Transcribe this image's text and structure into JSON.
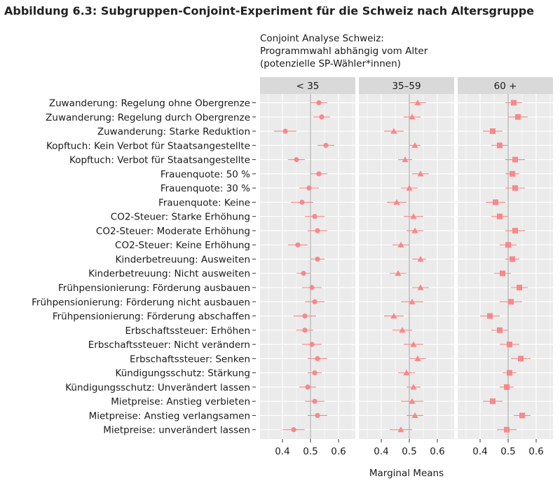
{
  "figure_title": "Abbildung 6.3: Subgruppen-Conjoint-Experiment für die Schweiz nach Altersgruppe",
  "colors": {
    "marker": "#f8888a",
    "panel_bg": "#ebebeb",
    "strip_bg": "#d9d9d9",
    "grid": "#ffffff",
    "refline": "#a6a6a6"
  },
  "chart_data": {
    "type": "scatter",
    "title_lines": [
      "Conjoint Analyse Schweiz:",
      "Programmwahl abhängig vom Alter",
      "(potenzielle SP-Wähler*innen)"
    ],
    "xlabel": "Marginal Means",
    "xlim": [
      0.32,
      0.66
    ],
    "xticks": [
      0.4,
      0.5,
      0.6
    ],
    "xtick_labels": [
      "0.4",
      "0.5",
      "0.6"
    ],
    "reference_line": 0.5,
    "categories": [
      "Zuwanderung: Regelung ohne Obergrenze",
      "Zuwanderung: Regelung durch Obergrenze",
      "Zuwanderung: Starke Reduktion",
      "Kopftuch: Kein Verbot für Staatsangestellte",
      "Kopftuch: Verbot für Staatsangestellte",
      "Frauenquote: 50 %",
      "Frauenquote: 30 %",
      "Frauenquote: Keine",
      "CO2-Steuer: Starke Erhöhung",
      "CO2-Steuer: Moderate Erhöhung",
      "CO2-Steuer: Keine Erhöhung",
      "Kinderbetreuung: Ausweiten",
      "Kinderbetreuung: Nicht ausweiten",
      "Frühpensionierung: Förderung ausbauen",
      "Frühpensionierung: Förderung nicht ausbauen",
      "Frühpensionierung: Förderung abschaffen",
      "Erbschaftssteuer: Erhöhen",
      "Erbschaftssteuer: Nicht verändern",
      "Erbschaftssteuer: Senken",
      "Kündigungsschutz: Stärkung",
      "Kündigungsschutz: Unverändert lassen",
      "Mietpreise: Anstieg verbieten",
      "Mietpreise: Anstieg verlangsamen",
      "Mietpreise: unverändert lassen"
    ],
    "series": [
      {
        "name": "< 35",
        "marker": "circle",
        "values": [
          0.53,
          0.54,
          0.41,
          0.555,
          0.45,
          0.53,
          0.495,
          0.47,
          0.515,
          0.525,
          0.455,
          0.525,
          0.475,
          0.505,
          0.515,
          0.48,
          0.48,
          0.505,
          0.525,
          0.515,
          0.49,
          0.515,
          0.525,
          0.44
        ],
        "lower": [
          0.5,
          0.51,
          0.37,
          0.525,
          0.42,
          0.5,
          0.46,
          0.43,
          0.48,
          0.49,
          0.42,
          0.5,
          0.45,
          0.47,
          0.48,
          0.44,
          0.45,
          0.47,
          0.49,
          0.49,
          0.46,
          0.48,
          0.49,
          0.4
        ],
        "upper": [
          0.56,
          0.57,
          0.45,
          0.585,
          0.48,
          0.56,
          0.53,
          0.51,
          0.55,
          0.56,
          0.49,
          0.55,
          0.5,
          0.54,
          0.55,
          0.52,
          0.51,
          0.54,
          0.56,
          0.54,
          0.52,
          0.55,
          0.56,
          0.48
        ]
      },
      {
        "name": "35–59",
        "marker": "triangle",
        "values": [
          0.53,
          0.51,
          0.445,
          0.52,
          0.485,
          0.54,
          0.5,
          0.455,
          0.515,
          0.52,
          0.47,
          0.54,
          0.46,
          0.54,
          0.51,
          0.445,
          0.475,
          0.515,
          0.53,
          0.49,
          0.515,
          0.51,
          0.52,
          0.47
        ],
        "lower": [
          0.5,
          0.48,
          0.41,
          0.5,
          0.46,
          0.51,
          0.47,
          0.42,
          0.48,
          0.49,
          0.44,
          0.51,
          0.43,
          0.51,
          0.47,
          0.41,
          0.44,
          0.48,
          0.5,
          0.46,
          0.49,
          0.47,
          0.49,
          0.43
        ],
        "upper": [
          0.56,
          0.54,
          0.48,
          0.54,
          0.51,
          0.57,
          0.53,
          0.49,
          0.55,
          0.55,
          0.5,
          0.56,
          0.49,
          0.57,
          0.55,
          0.48,
          0.51,
          0.55,
          0.56,
          0.52,
          0.54,
          0.55,
          0.55,
          0.51
        ]
      },
      {
        "name": "60 +",
        "marker": "square",
        "values": [
          0.52,
          0.535,
          0.445,
          0.47,
          0.525,
          0.515,
          0.525,
          0.455,
          0.47,
          0.525,
          0.5,
          0.515,
          0.48,
          0.54,
          0.51,
          0.435,
          0.47,
          0.505,
          0.545,
          0.505,
          0.495,
          0.445,
          0.55,
          0.495
        ],
        "lower": [
          0.49,
          0.5,
          0.41,
          0.44,
          0.49,
          0.49,
          0.49,
          0.42,
          0.44,
          0.49,
          0.47,
          0.49,
          0.45,
          0.51,
          0.47,
          0.4,
          0.44,
          0.47,
          0.51,
          0.48,
          0.47,
          0.41,
          0.52,
          0.46
        ],
        "upper": [
          0.55,
          0.57,
          0.48,
          0.5,
          0.56,
          0.54,
          0.56,
          0.49,
          0.5,
          0.56,
          0.53,
          0.54,
          0.51,
          0.57,
          0.55,
          0.47,
          0.5,
          0.54,
          0.58,
          0.53,
          0.52,
          0.48,
          0.58,
          0.53
        ]
      }
    ]
  }
}
